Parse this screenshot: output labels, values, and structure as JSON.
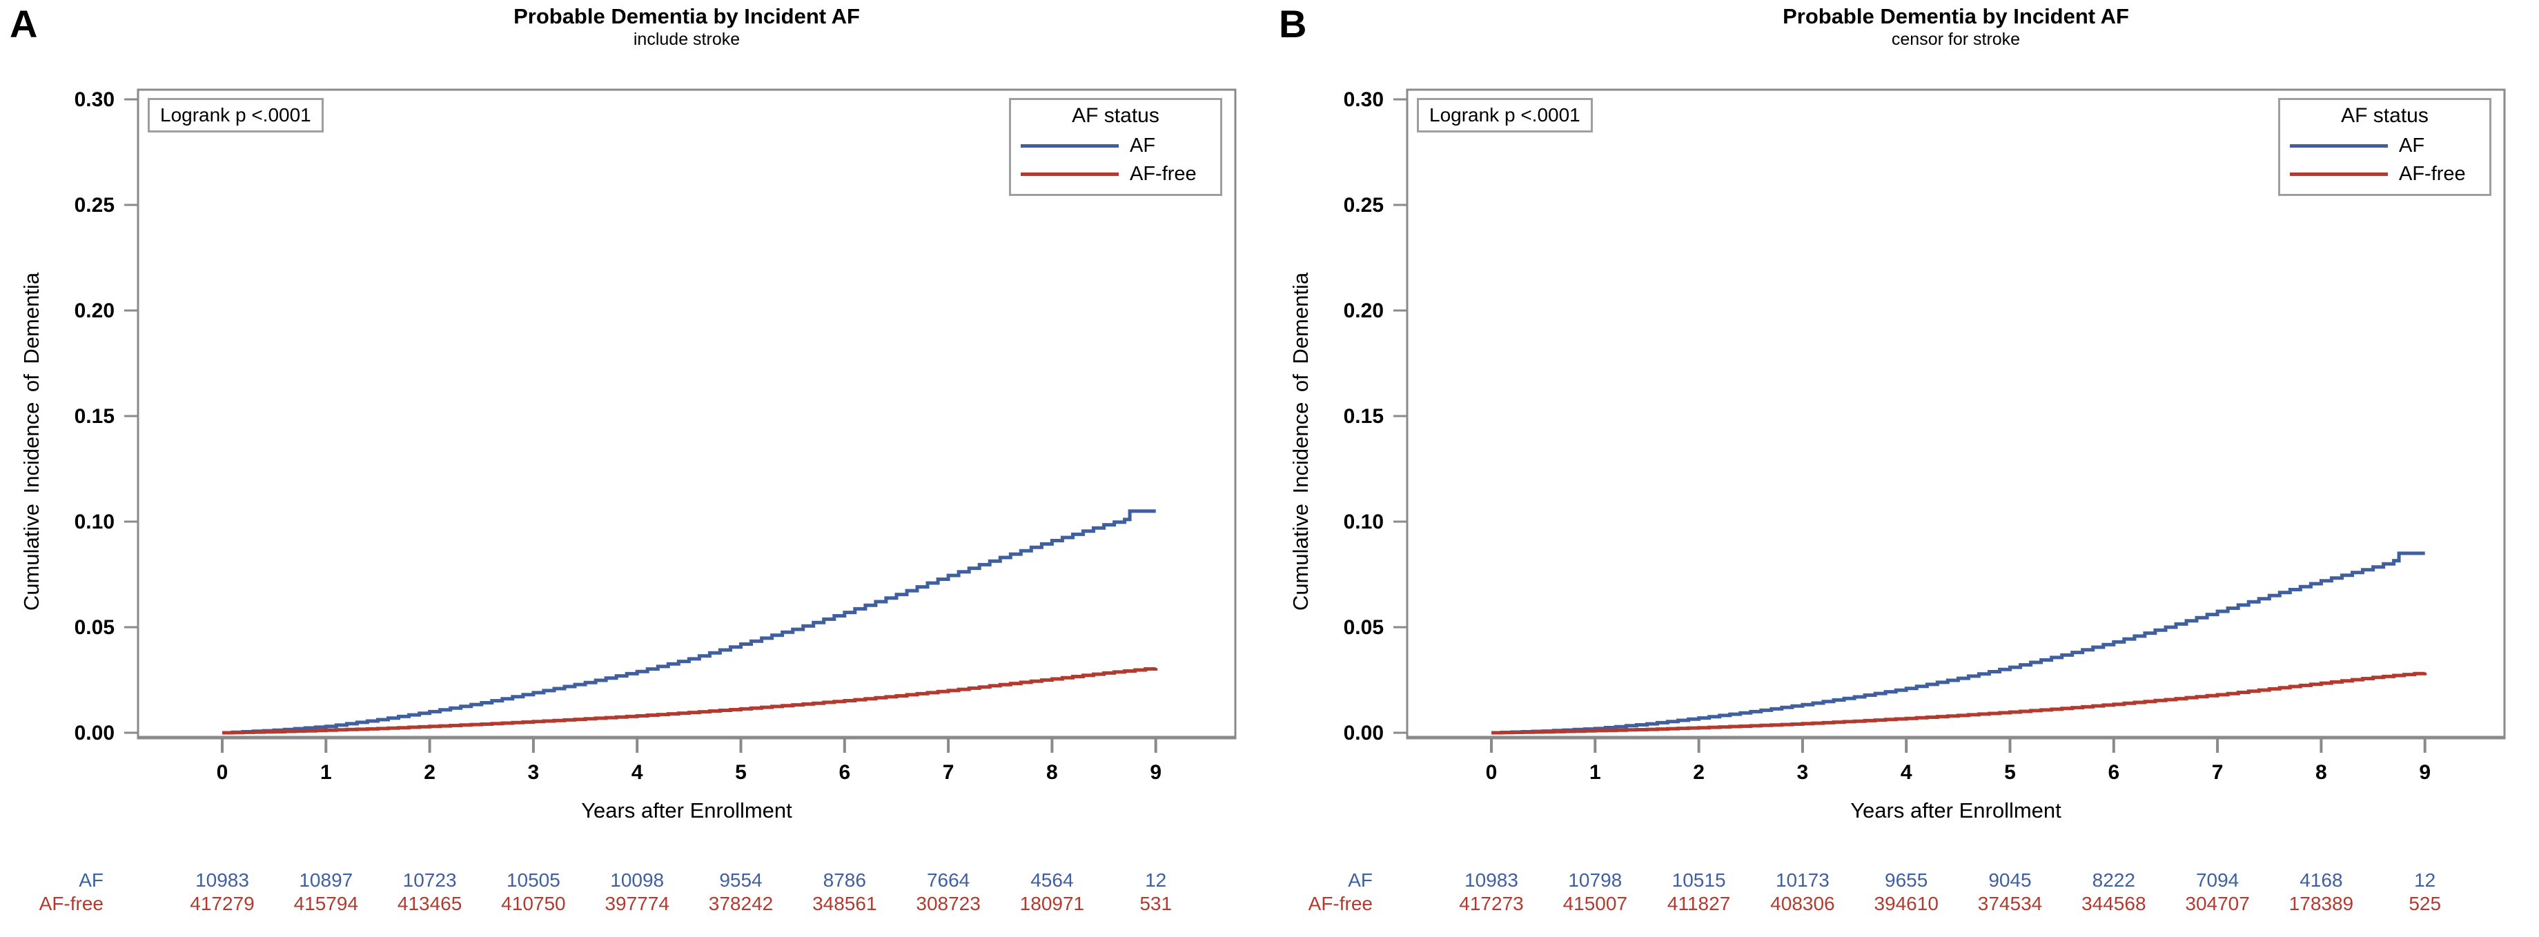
{
  "chart_data": [
    {
      "panel_label": "A",
      "type": "line",
      "subtype": "kaplan-meier-cumulative-incidence-step",
      "title": "Probable Dementia by Incident AF",
      "subtitle": "include stroke",
      "logrank": "Logrank p <.0001",
      "xlabel": "Years after Enrollment",
      "ylabel": "Cumulative Incidence of Dementia",
      "xlim": [
        0,
        9
      ],
      "ylim": [
        0,
        0.3
      ],
      "xticks": [
        "0",
        "1",
        "2",
        "3",
        "4",
        "5",
        "6",
        "7",
        "8",
        "9"
      ],
      "yticks": [
        "0.00",
        "0.05",
        "0.10",
        "0.15",
        "0.20",
        "0.25",
        "0.30"
      ],
      "grid": "off",
      "legend": {
        "title": "AF status",
        "position": "top-right",
        "items": [
          {
            "label": "AF",
            "color": "#3F5F9F"
          },
          {
            "label": "AF-free",
            "color": "#B23A2F"
          }
        ]
      },
      "series": [
        {
          "name": "AF",
          "color": "#3F5F9F",
          "points": [
            [
              0,
              0
            ],
            [
              0.5,
              0.0012
            ],
            [
              1,
              0.003
            ],
            [
              1.5,
              0.0062
            ],
            [
              2,
              0.01
            ],
            [
              2.5,
              0.0142
            ],
            [
              3,
              0.019
            ],
            [
              3.5,
              0.0238
            ],
            [
              4,
              0.029
            ],
            [
              4.5,
              0.035
            ],
            [
              5,
              0.042
            ],
            [
              5.5,
              0.049
            ],
            [
              6,
              0.057
            ],
            [
              6.5,
              0.0655
            ],
            [
              7,
              0.0745
            ],
            [
              7.5,
              0.083
            ],
            [
              8,
              0.091
            ],
            [
              8.5,
              0.0985
            ],
            [
              8.7,
              0.101
            ],
            [
              8.75,
              0.105
            ],
            [
              9,
              0.105
            ]
          ]
        },
        {
          "name": "AF-free",
          "color": "#B23A2F",
          "points": [
            [
              0,
              0
            ],
            [
              0.5,
              0.0005
            ],
            [
              1,
              0.0012
            ],
            [
              1.5,
              0.002
            ],
            [
              2,
              0.003
            ],
            [
              2.5,
              0.0041
            ],
            [
              3,
              0.0053
            ],
            [
              3.5,
              0.0066
            ],
            [
              4,
              0.008
            ],
            [
              4.5,
              0.0096
            ],
            [
              5,
              0.0113
            ],
            [
              5.5,
              0.0132
            ],
            [
              6,
              0.0152
            ],
            [
              6.5,
              0.0175
            ],
            [
              7,
              0.02
            ],
            [
              7.5,
              0.0228
            ],
            [
              8,
              0.0255
            ],
            [
              8.5,
              0.0283
            ],
            [
              9,
              0.0307
            ]
          ]
        }
      ],
      "risk_table": {
        "rows": [
          {
            "label": "AF",
            "color": "#3F5F9F",
            "values": [
              "10983",
              "10897",
              "10723",
              "10505",
              "10098",
              "9554",
              "8786",
              "7664",
              "4564",
              "12"
            ]
          },
          {
            "label": "AF-free",
            "color": "#B23A2F",
            "values": [
              "417279",
              "415794",
              "413465",
              "410750",
              "397774",
              "378242",
              "348561",
              "308723",
              "180971",
              "531"
            ]
          }
        ]
      }
    },
    {
      "panel_label": "B",
      "type": "line",
      "subtype": "kaplan-meier-cumulative-incidence-step",
      "title": "Probable Dementia by Incident AF",
      "subtitle": "censor for stroke",
      "logrank": "Logrank p <.0001",
      "xlabel": "Years after Enrollment",
      "ylabel": "Cumulative Incidence of Dementia",
      "xlim": [
        0,
        9
      ],
      "ylim": [
        0,
        0.3
      ],
      "xticks": [
        "0",
        "1",
        "2",
        "3",
        "4",
        "5",
        "6",
        "7",
        "8",
        "9"
      ],
      "yticks": [
        "0.00",
        "0.05",
        "0.10",
        "0.15",
        "0.20",
        "0.25",
        "0.30"
      ],
      "grid": "off",
      "legend": {
        "title": "AF status",
        "position": "top-right",
        "items": [
          {
            "label": "AF",
            "color": "#3F5F9F"
          },
          {
            "label": "AF-free",
            "color": "#B23A2F"
          }
        ]
      },
      "series": [
        {
          "name": "AF",
          "color": "#3F5F9F",
          "points": [
            [
              0,
              0
            ],
            [
              0.5,
              0.0008
            ],
            [
              1,
              0.002
            ],
            [
              1.5,
              0.0042
            ],
            [
              2,
              0.007
            ],
            [
              2.5,
              0.01
            ],
            [
              3,
              0.0133
            ],
            [
              3.5,
              0.017
            ],
            [
              4,
              0.021
            ],
            [
              4.5,
              0.0258
            ],
            [
              5,
              0.031
            ],
            [
              5.5,
              0.0368
            ],
            [
              6,
              0.043
            ],
            [
              6.5,
              0.05
            ],
            [
              7,
              0.0575
            ],
            [
              7.5,
              0.065
            ],
            [
              8,
              0.072
            ],
            [
              8.5,
              0.0785
            ],
            [
              8.7,
              0.0815
            ],
            [
              8.75,
              0.085
            ],
            [
              9,
              0.085
            ]
          ]
        },
        {
          "name": "AF-free",
          "color": "#B23A2F",
          "points": [
            [
              0,
              0
            ],
            [
              0.5,
              0.0004
            ],
            [
              1,
              0.001
            ],
            [
              1.5,
              0.0016
            ],
            [
              2,
              0.0024
            ],
            [
              2.5,
              0.0033
            ],
            [
              3,
              0.0043
            ],
            [
              3.5,
              0.0055
            ],
            [
              4,
              0.0068
            ],
            [
              4.5,
              0.0082
            ],
            [
              5,
              0.0098
            ],
            [
              5.5,
              0.0115
            ],
            [
              6,
              0.0135
            ],
            [
              6.5,
              0.0157
            ],
            [
              7,
              0.018
            ],
            [
              7.5,
              0.0208
            ],
            [
              8,
              0.0235
            ],
            [
              8.5,
              0.0262
            ],
            [
              9,
              0.0285
            ]
          ]
        }
      ],
      "risk_table": {
        "rows": [
          {
            "label": "AF",
            "color": "#3F5F9F",
            "values": [
              "10983",
              "10798",
              "10515",
              "10173",
              "9655",
              "9045",
              "8222",
              "7094",
              "4168",
              "12"
            ]
          },
          {
            "label": "AF-free",
            "color": "#B23A2F",
            "values": [
              "417273",
              "415007",
              "411827",
              "408306",
              "394610",
              "374534",
              "344568",
              "304707",
              "178389",
              "525"
            ]
          }
        ]
      }
    }
  ],
  "axis_color": "#8A8A8A"
}
